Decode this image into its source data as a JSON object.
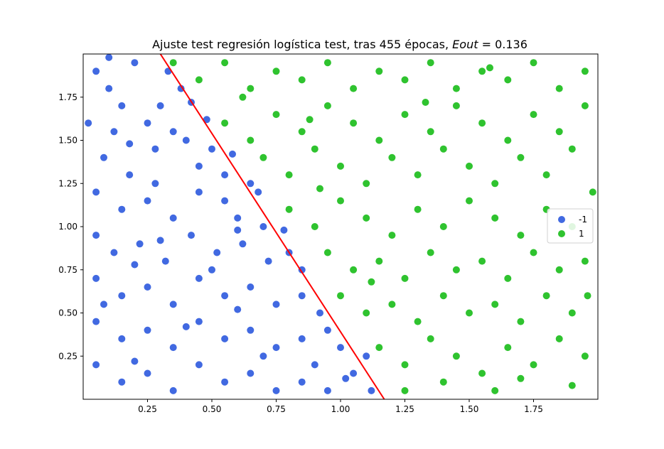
{
  "chart_data": {
    "type": "scatter",
    "title": {
      "prefix": "Ajuste test regresión logística test, tras 455 épocas, ",
      "metric": "Eout",
      "suffix": " = 0.136"
    },
    "xlabel": "",
    "ylabel": "",
    "xlim": [
      0.0,
      2.0
    ],
    "ylim": [
      0.0,
      2.0
    ],
    "x_ticks": [
      "0.25",
      "0.50",
      "0.75",
      "1.00",
      "1.25",
      "1.50",
      "1.75"
    ],
    "y_ticks": [
      "0.25",
      "0.50",
      "0.75",
      "1.00",
      "1.25",
      "1.50",
      "1.75"
    ],
    "grid": false,
    "legend_position": "center-right",
    "series": [
      {
        "name": "-1",
        "color": "#4169e1",
        "points": [
          [
            0.05,
            1.9
          ],
          [
            0.1,
            1.8
          ],
          [
            0.15,
            1.7
          ],
          [
            0.2,
            1.95
          ],
          [
            0.12,
            1.55
          ],
          [
            0.25,
            1.6
          ],
          [
            0.3,
            1.7
          ],
          [
            0.08,
            1.4
          ],
          [
            0.18,
            1.3
          ],
          [
            0.28,
            1.45
          ],
          [
            0.35,
            1.55
          ],
          [
            0.4,
            1.5
          ],
          [
            0.45,
            1.35
          ],
          [
            0.5,
            1.45
          ],
          [
            0.55,
            1.3
          ],
          [
            0.05,
            1.2
          ],
          [
            0.15,
            1.1
          ],
          [
            0.25,
            1.15
          ],
          [
            0.35,
            1.05
          ],
          [
            0.45,
            1.2
          ],
          [
            0.55,
            1.15
          ],
          [
            0.65,
            1.25
          ],
          [
            0.6,
            1.05
          ],
          [
            0.7,
            1.0
          ],
          [
            0.05,
            0.95
          ],
          [
            0.12,
            0.85
          ],
          [
            0.22,
            0.9
          ],
          [
            0.32,
            0.8
          ],
          [
            0.42,
            0.95
          ],
          [
            0.52,
            0.85
          ],
          [
            0.62,
            0.9
          ],
          [
            0.72,
            0.8
          ],
          [
            0.8,
            0.85
          ],
          [
            0.85,
            0.75
          ],
          [
            0.05,
            0.7
          ],
          [
            0.15,
            0.6
          ],
          [
            0.25,
            0.65
          ],
          [
            0.35,
            0.55
          ],
          [
            0.45,
            0.7
          ],
          [
            0.55,
            0.6
          ],
          [
            0.65,
            0.65
          ],
          [
            0.75,
            0.55
          ],
          [
            0.85,
            0.6
          ],
          [
            0.92,
            0.5
          ],
          [
            0.05,
            0.45
          ],
          [
            0.15,
            0.35
          ],
          [
            0.25,
            0.4
          ],
          [
            0.35,
            0.3
          ],
          [
            0.45,
            0.45
          ],
          [
            0.55,
            0.35
          ],
          [
            0.65,
            0.4
          ],
          [
            0.75,
            0.3
          ],
          [
            0.85,
            0.35
          ],
          [
            0.95,
            0.4
          ],
          [
            1.0,
            0.3
          ],
          [
            0.05,
            0.2
          ],
          [
            0.15,
            0.1
          ],
          [
            0.25,
            0.15
          ],
          [
            0.35,
            0.05
          ],
          [
            0.45,
            0.2
          ],
          [
            0.55,
            0.1
          ],
          [
            0.65,
            0.15
          ],
          [
            0.75,
            0.05
          ],
          [
            0.85,
            0.1
          ],
          [
            0.95,
            0.05
          ],
          [
            1.05,
            0.15
          ],
          [
            1.1,
            0.25
          ],
          [
            1.12,
            0.05
          ],
          [
            0.02,
            1.6
          ],
          [
            0.1,
            1.98
          ],
          [
            0.38,
            1.8
          ],
          [
            0.48,
            1.62
          ],
          [
            0.58,
            1.42
          ],
          [
            0.68,
            1.2
          ],
          [
            0.78,
            0.98
          ],
          [
            0.2,
            0.22
          ],
          [
            0.3,
            0.92
          ],
          [
            0.4,
            0.42
          ],
          [
            0.6,
            0.52
          ],
          [
            0.9,
            0.2
          ],
          [
            1.02,
            0.12
          ],
          [
            0.7,
            0.25
          ],
          [
            0.5,
            0.75
          ],
          [
            0.2,
            0.78
          ],
          [
            0.08,
            0.55
          ],
          [
            0.28,
            1.25
          ],
          [
            0.18,
            1.48
          ],
          [
            0.42,
            1.72
          ],
          [
            0.33,
            1.9
          ],
          [
            0.6,
            0.98
          ]
        ]
      },
      {
        "name": "1",
        "color": "#2fc32f",
        "points": [
          [
            0.35,
            1.95
          ],
          [
            0.45,
            1.85
          ],
          [
            0.55,
            1.95
          ],
          [
            0.65,
            1.8
          ],
          [
            0.75,
            1.9
          ],
          [
            0.85,
            1.85
          ],
          [
            0.95,
            1.95
          ],
          [
            1.05,
            1.8
          ],
          [
            1.15,
            1.9
          ],
          [
            1.25,
            1.85
          ],
          [
            1.35,
            1.95
          ],
          [
            1.45,
            1.8
          ],
          [
            1.55,
            1.9
          ],
          [
            1.65,
            1.85
          ],
          [
            1.75,
            1.95
          ],
          [
            1.85,
            1.8
          ],
          [
            1.95,
            1.9
          ],
          [
            0.55,
            1.6
          ],
          [
            0.65,
            1.5
          ],
          [
            0.75,
            1.65
          ],
          [
            0.85,
            1.55
          ],
          [
            0.95,
            1.7
          ],
          [
            1.05,
            1.6
          ],
          [
            1.15,
            1.5
          ],
          [
            1.25,
            1.65
          ],
          [
            1.35,
            1.55
          ],
          [
            1.45,
            1.7
          ],
          [
            1.55,
            1.6
          ],
          [
            1.65,
            1.5
          ],
          [
            1.75,
            1.65
          ],
          [
            1.85,
            1.55
          ],
          [
            1.95,
            1.7
          ],
          [
            0.7,
            1.4
          ],
          [
            0.8,
            1.3
          ],
          [
            0.9,
            1.45
          ],
          [
            1.0,
            1.35
          ],
          [
            1.1,
            1.25
          ],
          [
            1.2,
            1.4
          ],
          [
            1.3,
            1.3
          ],
          [
            1.4,
            1.45
          ],
          [
            1.5,
            1.35
          ],
          [
            1.6,
            1.25
          ],
          [
            1.7,
            1.4
          ],
          [
            1.8,
            1.3
          ],
          [
            1.9,
            1.45
          ],
          [
            0.8,
            1.1
          ],
          [
            0.9,
            1.0
          ],
          [
            1.0,
            1.15
          ],
          [
            1.1,
            1.05
          ],
          [
            1.2,
            0.95
          ],
          [
            1.3,
            1.1
          ],
          [
            1.4,
            1.0
          ],
          [
            1.5,
            1.15
          ],
          [
            1.6,
            1.05
          ],
          [
            1.7,
            0.95
          ],
          [
            1.8,
            1.1
          ],
          [
            1.9,
            1.0
          ],
          [
            0.95,
            0.85
          ],
          [
            1.05,
            0.75
          ],
          [
            1.15,
            0.8
          ],
          [
            1.25,
            0.7
          ],
          [
            1.35,
            0.85
          ],
          [
            1.45,
            0.75
          ],
          [
            1.55,
            0.8
          ],
          [
            1.65,
            0.7
          ],
          [
            1.75,
            0.85
          ],
          [
            1.85,
            0.75
          ],
          [
            1.95,
            0.8
          ],
          [
            1.0,
            0.6
          ],
          [
            1.1,
            0.5
          ],
          [
            1.2,
            0.55
          ],
          [
            1.3,
            0.45
          ],
          [
            1.4,
            0.6
          ],
          [
            1.5,
            0.5
          ],
          [
            1.6,
            0.55
          ],
          [
            1.7,
            0.45
          ],
          [
            1.8,
            0.6
          ],
          [
            1.9,
            0.5
          ],
          [
            1.15,
            0.3
          ],
          [
            1.25,
            0.2
          ],
          [
            1.35,
            0.35
          ],
          [
            1.45,
            0.25
          ],
          [
            1.55,
            0.15
          ],
          [
            1.65,
            0.3
          ],
          [
            1.75,
            0.2
          ],
          [
            1.85,
            0.35
          ],
          [
            1.95,
            0.25
          ],
          [
            1.25,
            0.05
          ],
          [
            1.4,
            0.1
          ],
          [
            1.6,
            0.05
          ],
          [
            1.7,
            0.12
          ],
          [
            1.9,
            0.08
          ],
          [
            0.62,
            1.75
          ],
          [
            0.92,
            1.22
          ],
          [
            1.33,
            1.72
          ],
          [
            1.58,
            1.92
          ],
          [
            1.98,
            1.2
          ],
          [
            1.96,
            0.6
          ],
          [
            1.12,
            0.68
          ],
          [
            0.88,
            1.62
          ]
        ]
      }
    ],
    "decision_line": {
      "color": "#ff0000",
      "points": [
        [
          0.3,
          2.0
        ],
        [
          1.17,
          0.0
        ]
      ]
    }
  }
}
